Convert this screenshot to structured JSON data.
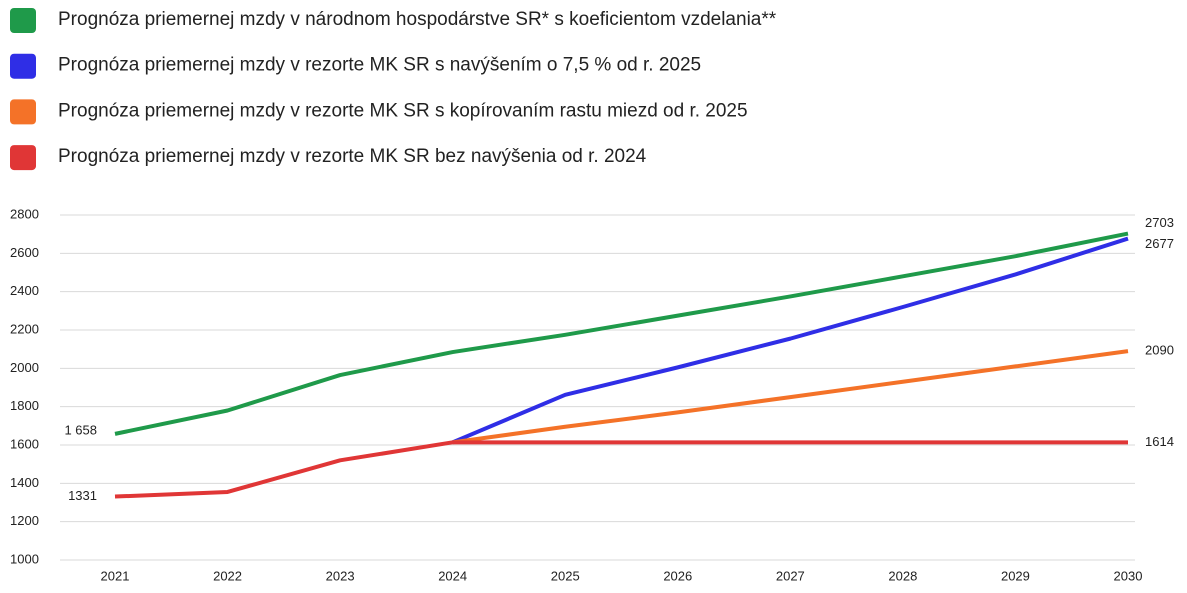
{
  "chart_data": {
    "type": "line",
    "categories": [
      "2021",
      "2022",
      "2023",
      "2024",
      "2025",
      "2026",
      "2027",
      "2028",
      "2029",
      "2030"
    ],
    "series": [
      {
        "name": "Prognóza priemernej mzdy v národnom hospodárstve SR* s koeficientom vzdelania**",
        "color": "#1f9a4a",
        "values": [
          1658,
          1780,
          1965,
          2085,
          2175,
          2275,
          2375,
          2480,
          2585,
          2703
        ],
        "value_labels": [
          "1 658",
          null,
          null,
          null,
          null,
          null,
          null,
          null,
          null,
          "2703"
        ]
      },
      {
        "name": "Prognóza priemernej mzdy v rezorte MK SR s navýšením o 7,5 % od r. 2025",
        "color": "#2f2ee6",
        "values": [
          null,
          null,
          null,
          1614,
          1862,
          2005,
          2155,
          2320,
          2490,
          2677
        ],
        "value_labels": [
          null,
          null,
          null,
          null,
          null,
          null,
          null,
          null,
          null,
          "2677"
        ]
      },
      {
        "name": "Prognóza priemernej mzdy v rezorte MK SR s kopírovaním rastu miezd od r. 2025",
        "color": "#f47228",
        "values": [
          null,
          null,
          null,
          1614,
          1695,
          1770,
          1850,
          1930,
          2010,
          2090
        ],
        "value_labels": [
          null,
          null,
          null,
          null,
          null,
          null,
          null,
          null,
          null,
          "2090"
        ]
      },
      {
        "name": "Prognóza priemernej mzdy v rezorte MK SR bez navýšenia od r. 2024",
        "color": "#e03636",
        "values": [
          1331,
          1355,
          1520,
          1614,
          1614,
          1614,
          1614,
          1614,
          1614,
          1614
        ],
        "value_labels": [
          "1331",
          null,
          null,
          null,
          null,
          null,
          null,
          null,
          null,
          "1614"
        ]
      }
    ],
    "ylim": [
      1000,
      2800
    ],
    "yticks": [
      1000,
      1200,
      1400,
      1600,
      1800,
      2000,
      2200,
      2400,
      2600,
      2800
    ],
    "grid": true
  }
}
